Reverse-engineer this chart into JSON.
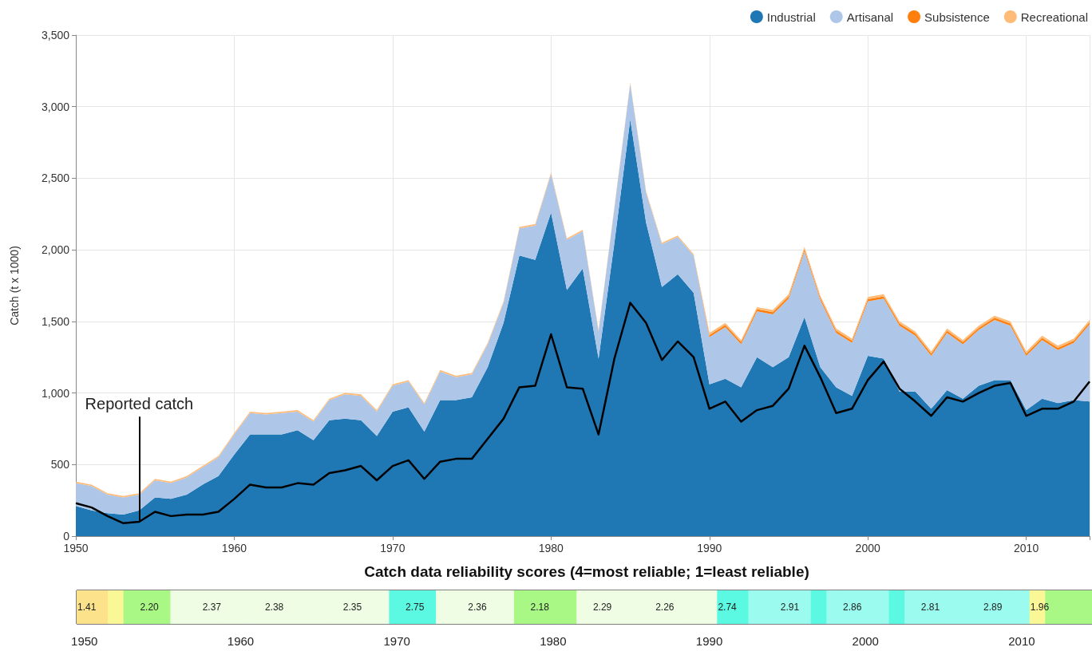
{
  "chart_data": [
    {
      "type": "area",
      "stacked": true,
      "ylabel": "Catch (t x 1000)",
      "legend": "top right",
      "grid": true,
      "xlim": [
        1950,
        2014
      ],
      "xticks": [
        1950,
        1960,
        1970,
        1980,
        1990,
        2000,
        2010
      ],
      "ylim": [
        0,
        3500
      ],
      "yticks": [
        0,
        500,
        {
          "value": 1000,
          "label": "1,000"
        },
        {
          "value": 1500,
          "label": "1,500"
        },
        {
          "value": 2000,
          "label": "2,000"
        },
        {
          "value": 2500,
          "label": "2,500"
        },
        {
          "value": 3000,
          "label": "3,000"
        },
        {
          "value": 3500,
          "label": "3,500"
        }
      ],
      "x": [
        1950,
        1951,
        1952,
        1953,
        1954,
        1955,
        1956,
        1957,
        1958,
        1959,
        1960,
        1961,
        1962,
        1963,
        1964,
        1965,
        1966,
        1967,
        1968,
        1969,
        1970,
        1971,
        1972,
        1973,
        1974,
        1975,
        1976,
        1977,
        1978,
        1979,
        1980,
        1981,
        1982,
        1983,
        1984,
        1985,
        1986,
        1987,
        1988,
        1989,
        1990,
        1991,
        1992,
        1993,
        1994,
        1995,
        1996,
        1997,
        1998,
        1999,
        2000,
        2001,
        2002,
        2003,
        2004,
        2005,
        2006,
        2007,
        2008,
        2009,
        2010,
        2011,
        2012,
        2013,
        2014
      ],
      "series": [
        {
          "name": "Industrial",
          "color": "#1f77b4",
          "values": [
            210,
            180,
            160,
            150,
            180,
            270,
            260,
            290,
            360,
            420,
            570,
            710,
            710,
            710,
            740,
            670,
            810,
            820,
            810,
            700,
            870,
            900,
            730,
            950,
            950,
            970,
            1180,
            1490,
            1960,
            1930,
            2260,
            1720,
            1870,
            1240,
            2050,
            2910,
            2190,
            1740,
            1830,
            1700,
            1060,
            1100,
            1040,
            1250,
            1180,
            1250,
            1530,
            1180,
            1040,
            980,
            1260,
            1240,
            1010,
            1010,
            890,
            1020,
            960,
            1050,
            1090,
            1090,
            880,
            960,
            930,
            950,
            940
          ]
        },
        {
          "name": "Artisanal",
          "color": "#aec7e8",
          "values": [
            160,
            170,
            130,
            120,
            110,
            120,
            110,
            120,
            120,
            130,
            140,
            150,
            140,
            150,
            130,
            130,
            140,
            170,
            170,
            170,
            180,
            180,
            190,
            200,
            160,
            160,
            160,
            140,
            190,
            240,
            270,
            350,
            260,
            190,
            240,
            250,
            210,
            300,
            260,
            260,
            330,
            360,
            300,
            320,
            370,
            410,
            460,
            470,
            380,
            370,
            380,
            420,
            460,
            390,
            370,
            400,
            380,
            390,
            420,
            380,
            380,
            410,
            370,
            400,
            540
          ]
        },
        {
          "name": "Subsistence",
          "color": "#ff7f0e",
          "values": [
            0,
            0,
            0,
            0,
            0,
            0,
            0,
            0,
            0,
            0,
            0,
            0,
            0,
            0,
            0,
            0,
            0,
            0,
            0,
            0,
            0,
            0,
            0,
            0,
            0,
            0,
            0,
            0,
            0,
            0,
            0,
            0,
            0,
            0,
            0,
            0,
            0,
            0,
            0,
            0,
            15,
            15,
            15,
            15,
            15,
            15,
            15,
            15,
            15,
            15,
            15,
            15,
            15,
            15,
            15,
            15,
            15,
            15,
            15,
            15,
            15,
            15,
            15,
            15,
            15
          ]
        },
        {
          "name": "Recreational",
          "color": "#ffbb78",
          "values": [
            10,
            10,
            10,
            10,
            10,
            10,
            10,
            10,
            10,
            10,
            10,
            10,
            10,
            10,
            10,
            10,
            10,
            10,
            10,
            10,
            10,
            10,
            10,
            10,
            10,
            10,
            10,
            10,
            10,
            10,
            10,
            10,
            10,
            10,
            10,
            10,
            10,
            10,
            10,
            10,
            15,
            15,
            15,
            15,
            15,
            15,
            15,
            15,
            15,
            15,
            15,
            15,
            15,
            15,
            15,
            15,
            15,
            15,
            15,
            15,
            15,
            15,
            15,
            15,
            15
          ]
        },
        {
          "type": "line",
          "color": "#000000",
          "values": [
            230,
            200,
            140,
            90,
            100,
            170,
            140,
            150,
            150,
            170,
            260,
            360,
            340,
            340,
            370,
            360,
            440,
            460,
            490,
            390,
            490,
            530,
            400,
            520,
            540,
            540,
            680,
            820,
            1040,
            1050,
            1410,
            1040,
            1030,
            710,
            1240,
            1630,
            1490,
            1230,
            1360,
            1250,
            890,
            940,
            800,
            880,
            910,
            1030,
            1330,
            1110,
            860,
            890,
            1090,
            1220,
            1030,
            940,
            840,
            970,
            940,
            1000,
            1050,
            1070,
            840,
            890,
            890,
            940,
            1080
          ]
        }
      ],
      "annotations": [
        {
          "text": "Reported catch",
          "x": 1954,
          "y": 100
        }
      ]
    },
    {
      "type": "heatmap",
      "title": "Catch data reliability scores (4=most reliable; 1=least reliable)",
      "tick_labels": "x",
      "categories": [
        "1950",
        null,
        null,
        null,
        null,
        null,
        null,
        null,
        null,
        null,
        "1960",
        null,
        null,
        null,
        null,
        null,
        null,
        null,
        null,
        null,
        "1970",
        null,
        null,
        null,
        null,
        null,
        null,
        null,
        null,
        null,
        "1980",
        null,
        null,
        null,
        null,
        null,
        null,
        null,
        null,
        null,
        "1990",
        null,
        null,
        null,
        null,
        null,
        null,
        null,
        null,
        null,
        "2000",
        null,
        null,
        null,
        null,
        null,
        null,
        null,
        null,
        null,
        "2010",
        null,
        null,
        null,
        null
      ],
      "y_categories": [
        null
      ],
      "cell_labels": [
        [
          "1.41",
          null,
          null,
          null,
          "2.20",
          null,
          null,
          null,
          "2.37",
          null,
          null,
          null,
          "2.38",
          null,
          null,
          null,
          null,
          "2.35",
          null,
          null,
          null,
          "2.75",
          null,
          null,
          null,
          "2.36",
          null,
          null,
          null,
          "2.18",
          null,
          null,
          null,
          "2.29",
          null,
          null,
          null,
          "2.26",
          null,
          null,
          null,
          "2.74",
          null,
          null,
          null,
          "2.91",
          null,
          null,
          null,
          "2.86",
          null,
          null,
          null,
          null,
          "2.81",
          null,
          null,
          null,
          "2.89",
          null,
          null,
          "1.96",
          null,
          null,
          null
        ]
      ],
      "cells": [
        [
          1.41,
          null,
          null,
          null,
          2.2,
          null,
          null,
          null,
          2.37,
          null,
          null,
          null,
          2.38,
          null,
          null,
          null,
          null,
          2.35,
          null,
          null,
          null,
          2.75,
          null,
          null,
          null,
          2.36,
          null,
          null,
          null,
          2.18,
          null,
          null,
          null,
          2.29,
          null,
          null,
          null,
          2.26,
          null,
          null,
          null,
          2.74,
          null,
          null,
          null,
          2.91,
          null,
          null,
          null,
          2.86,
          null,
          null,
          null,
          null,
          2.81,
          null,
          null,
          null,
          2.89,
          null,
          null,
          1.96,
          null,
          null,
          null
        ]
      ],
      "colors": [
        "#fde28c",
        "#fde28c",
        "#faf796",
        "#a9f784",
        "#a9f784",
        "#a9f784",
        "#eefde4",
        "#eefde4",
        "#eefde4",
        "#eefde4",
        "#eefde4",
        "#eefde4",
        "#eefde4",
        "#eefde4",
        "#eefde4",
        "#eefde4",
        "#eefde4",
        "#eefde4",
        "#eefde4",
        "#eefde4",
        "#5cf9e2",
        "#5cf9e2",
        "#5cf9e2",
        "#eefde4",
        "#eefde4",
        "#eefde4",
        "#eefde4",
        "#eefde4",
        "#a9f784",
        "#a9f784",
        "#a9f784",
        "#a9f784",
        "#eefde4",
        "#eefde4",
        "#eefde4",
        "#eefde4",
        "#eefde4",
        "#eefde4",
        "#eefde4",
        "#eefde4",
        "#eefde4",
        "#5cf9e2",
        "#5cf9e2",
        "#9afbee",
        "#9afbee",
        "#9afbee",
        "#9afbee",
        "#5cf9e2",
        "#9afbee",
        "#9afbee",
        "#9afbee",
        "#9afbee",
        "#5cf9e2",
        "#9afbee",
        "#9afbee",
        "#9afbee",
        "#9afbee",
        "#9afbee",
        "#9afbee",
        "#9afbee",
        "#9afbee",
        "#faf796",
        "#a9f784",
        "#a9f784",
        "#a9f784"
      ]
    }
  ]
}
